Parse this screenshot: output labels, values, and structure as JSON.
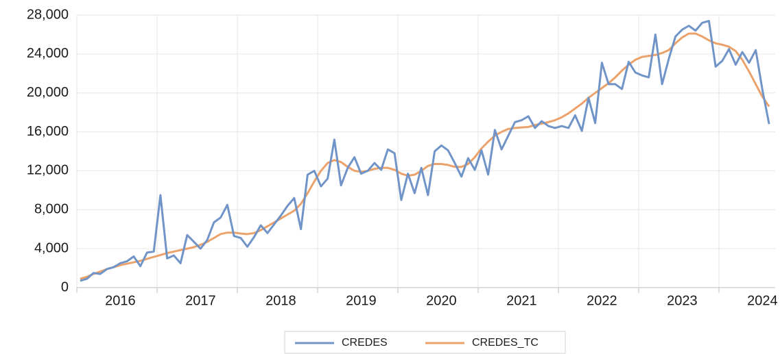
{
  "chart_data": {
    "type": "line",
    "categories": [
      null,
      null,
      null,
      null,
      null,
      null,
      "2016",
      null,
      null,
      null,
      null,
      null,
      null,
      null,
      null,
      null,
      null,
      null,
      "2017",
      null,
      null,
      null,
      null,
      null,
      null,
      null,
      null,
      null,
      null,
      null,
      "2018",
      null,
      null,
      null,
      null,
      null,
      null,
      null,
      null,
      null,
      null,
      null,
      "2019",
      null,
      null,
      null,
      null,
      null,
      null,
      null,
      null,
      null,
      null,
      null,
      "2020",
      null,
      null,
      null,
      null,
      null,
      null,
      null,
      null,
      null,
      null,
      null,
      "2021",
      null,
      null,
      null,
      null,
      null,
      null,
      null,
      null,
      null,
      null,
      null,
      "2022",
      null,
      null,
      null,
      null,
      null,
      null,
      null,
      null,
      null,
      null,
      null,
      "2023",
      null,
      null,
      null,
      null,
      null,
      null,
      null,
      null,
      null,
      null,
      null,
      "2024",
      null
    ],
    "series": [
      {
        "name": "CREDES",
        "color": "#7094c8",
        "values": [
          700,
          900,
          1500,
          1400,
          1900,
          2100,
          2500,
          2700,
          3200,
          2200,
          3600,
          3700,
          9500,
          3000,
          3300,
          2500,
          5400,
          4700,
          4000,
          4900,
          6700,
          7200,
          8500,
          5300,
          5100,
          4200,
          5200,
          6400,
          5600,
          6500,
          7400,
          8400,
          9200,
          6000,
          11600,
          12000,
          10400,
          11200,
          15200,
          10500,
          12300,
          13400,
          11700,
          12000,
          12800,
          12100,
          14200,
          13800,
          9000,
          11700,
          9700,
          12300,
          9500,
          14000,
          14600,
          14100,
          12800,
          11400,
          13300,
          12100,
          14100,
          11600,
          16200,
          14200,
          15600,
          17000,
          17200,
          17600,
          16400,
          17100,
          16600,
          16400,
          16600,
          16400,
          17700,
          16100,
          19500,
          16900,
          23100,
          20900,
          20900,
          20400,
          23200,
          22100,
          21800,
          21600,
          26000,
          20900,
          23500,
          25800,
          26500,
          26900,
          26400,
          27200,
          27400,
          22700,
          23300,
          24500,
          22900,
          24200,
          23100,
          24400,
          20300,
          16800
        ]
      },
      {
        "name": "CREDES_TC",
        "color": "#eba26a",
        "values": [
          900,
          1100,
          1400,
          1650,
          1900,
          2100,
          2300,
          2450,
          2600,
          2750,
          2950,
          3150,
          3350,
          3550,
          3700,
          3850,
          4000,
          4150,
          4400,
          4700,
          5100,
          5500,
          5650,
          5650,
          5550,
          5500,
          5600,
          5900,
          6300,
          6700,
          7100,
          7500,
          7900,
          8600,
          9700,
          10900,
          12000,
          12800,
          13100,
          12900,
          12400,
          12000,
          11900,
          12000,
          12200,
          12300,
          12300,
          12100,
          11700,
          11500,
          11600,
          12000,
          12500,
          12700,
          12700,
          12600,
          12400,
          12400,
          12700,
          13400,
          14300,
          15000,
          15600,
          16000,
          16300,
          16400,
          16450,
          16500,
          16700,
          16850,
          17000,
          17200,
          17500,
          17900,
          18400,
          18900,
          19500,
          20000,
          20500,
          21000,
          21600,
          22300,
          22900,
          23400,
          23700,
          23800,
          23900,
          24100,
          24400,
          25100,
          25700,
          26100,
          26100,
          25800,
          25400,
          25100,
          24950,
          24750,
          24300,
          23400,
          22200,
          20900,
          19600,
          18600
        ]
      }
    ],
    "ylim": [
      0,
      28000
    ],
    "yticks": [
      0,
      {
        "value": 4000,
        "label": "4,000"
      },
      {
        "value": 8000,
        "label": "8,000"
      },
      {
        "value": 12000,
        "label": "12,000"
      },
      {
        "value": 16000,
        "label": "16,000"
      },
      {
        "value": 20000,
        "label": "20,000"
      },
      {
        "value": 24000,
        "label": "24,000"
      },
      {
        "value": 28000,
        "label": "28,000"
      }
    ],
    "grid": true,
    "legend": "bottom"
  }
}
